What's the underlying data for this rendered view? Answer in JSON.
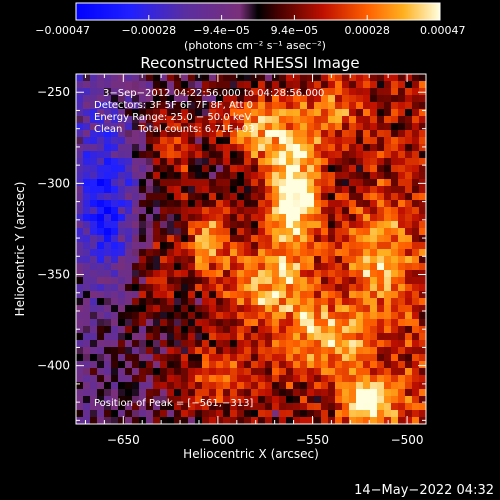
{
  "chart_data": {
    "type": "heatmap",
    "title": "Reconstructed RHESSI Image",
    "xlabel": "Heliocentric X (arcsec)",
    "ylabel": "Heliocentric Y (arcsec)",
    "xlim": [
      -675,
      -490
    ],
    "ylim": [
      -432,
      -240
    ],
    "x_ticks": [
      -650,
      -600,
      -550,
      -500
    ],
    "y_ticks": [
      -250,
      -300,
      -350,
      -400
    ],
    "x_tick_labels": [
      "−650",
      "−600",
      "−550",
      "−500"
    ],
    "y_tick_labels": [
      "−250",
      "−300",
      "−350",
      "−400"
    ],
    "colorbar": {
      "min": -0.00047,
      "max": 0.00047,
      "tick_labels": [
        "−0.00047",
        "−0.00028",
        "−9.4e−05",
        "9.4e−05",
        "0.00028",
        "0.00047"
      ],
      "units": "(photons cm⁻² s⁻¹ asec⁻²)"
    },
    "annotations": [
      "3−Sep−2012 04:22:56.000 to 04:28:56.000",
      "Detectors: 3F 5F 6F 7F 8F, Att 0",
      "Energy Range: 25.0 − 50.0 keV",
      "Clean     Total counts: 6.71E+03"
    ],
    "peak_label": "Position of Peak = [−561,−313]",
    "peak": [
      -561,
      -313
    ],
    "sources": [
      {
        "x": -560,
        "y": -305,
        "amp": 0.00047,
        "sx": 10,
        "sy": 22
      },
      {
        "x": -580,
        "y": -270,
        "amp": 0.00032,
        "sx": 14,
        "sy": 14
      },
      {
        "x": -605,
        "y": -330,
        "amp": 0.00034,
        "sx": 8,
        "sy": 14
      },
      {
        "x": -575,
        "y": -355,
        "amp": 0.0003,
        "sx": 18,
        "sy": 16
      },
      {
        "x": -545,
        "y": -385,
        "amp": 0.00028,
        "sx": 16,
        "sy": 14
      },
      {
        "x": -520,
        "y": -420,
        "amp": 0.00036,
        "sx": 10,
        "sy": 10
      },
      {
        "x": -515,
        "y": -340,
        "amp": 0.00024,
        "sx": 12,
        "sy": 22
      },
      {
        "x": -625,
        "y": -280,
        "amp": 0.00022,
        "sx": 10,
        "sy": 18
      },
      {
        "x": -632,
        "y": -350,
        "amp": 0.00016,
        "sx": 10,
        "sy": 20
      },
      {
        "x": -540,
        "y": -260,
        "amp": 0.0002,
        "sx": 14,
        "sy": 12
      },
      {
        "x": -600,
        "y": -405,
        "amp": 0.0002,
        "sx": 16,
        "sy": 14
      },
      {
        "x": -660,
        "y": -310,
        "amp": -0.0003,
        "sx": 10,
        "sy": 30
      }
    ],
    "background_gradient": [
      0.00026,
      -0.00018
    ]
  },
  "footer": {
    "timestamp": "14−May−2022 04:32"
  }
}
